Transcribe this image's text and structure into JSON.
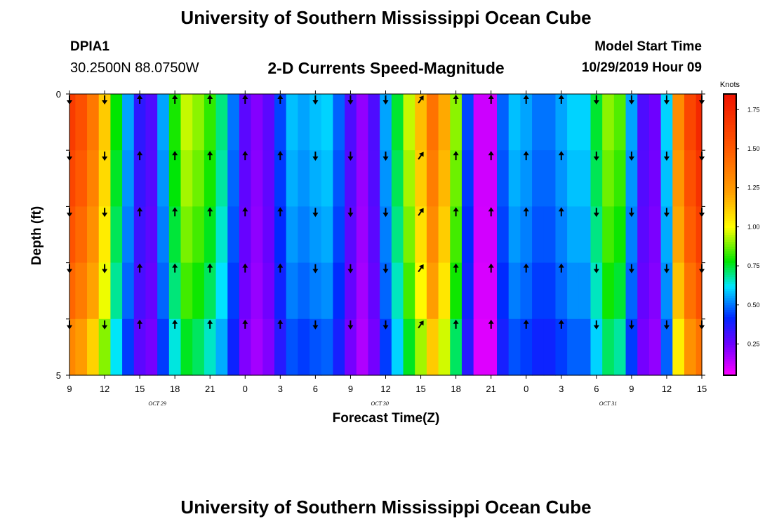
{
  "header": {
    "title": "University of Southern Mississippi Ocean Cube",
    "station_id": "DPIA1",
    "station_coords": "30.2500N 88.0750W",
    "subtitle": "2-D Currents Speed-Magnitude",
    "model_start_label": "Model Start Time",
    "model_start_value": "10/29/2019 Hour 09"
  },
  "footer": {
    "title": "University of Southern Mississippi Ocean Cube"
  },
  "chart_data": {
    "type": "heatmap",
    "title": "2-D Currents Speed-Magnitude",
    "xlabel": "Forecast Time(Z)",
    "ylabel": "Depth (ft)",
    "x_unit": "hours since 10/29 09Z",
    "x": [
      0,
      1,
      2,
      3,
      4,
      5,
      6,
      7,
      8,
      9,
      10,
      11,
      12,
      13,
      14,
      15,
      16,
      17,
      18,
      19,
      20,
      21,
      22,
      23,
      24,
      25,
      26,
      27,
      28,
      29,
      30,
      31,
      32,
      33,
      34,
      35,
      36,
      37,
      38,
      39,
      40,
      41,
      42,
      43,
      44,
      45,
      46,
      47,
      48,
      49,
      50,
      51,
      52,
      53,
      54
    ],
    "xlim": [
      0,
      54
    ],
    "x_tick_labels": [
      "9",
      "12",
      "15",
      "18",
      "21",
      "0",
      "3",
      "6",
      "9",
      "12",
      "15",
      "18",
      "21",
      "0",
      "3",
      "6",
      "9",
      "12",
      "15"
    ],
    "date_labels": [
      {
        "x": 7.5,
        "label": "OCT 29"
      },
      {
        "x": 26.5,
        "label": "OCT 30"
      },
      {
        "x": 46,
        "label": "OCT 31"
      }
    ],
    "y_tick_labels": [
      "0",
      "5"
    ],
    "ylim": [
      0,
      5
    ],
    "depth_rows": 5,
    "surface_speed": [
      1.65,
      1.55,
      1.38,
      1.12,
      0.78,
      0.55,
      0.35,
      0.3,
      0.55,
      0.8,
      0.95,
      0.9,
      0.82,
      0.7,
      0.5,
      0.28,
      0.22,
      0.28,
      0.45,
      0.58,
      0.55,
      0.58,
      0.6,
      0.48,
      0.3,
      0.2,
      0.3,
      0.55,
      0.75,
      0.95,
      1.15,
      1.4,
      1.2,
      0.9,
      0.45,
      0.12,
      0.12,
      0.48,
      0.58,
      0.55,
      0.5,
      0.5,
      0.55,
      0.6,
      0.6,
      0.75,
      0.9,
      0.85,
      0.55,
      0.3,
      0.25,
      0.6,
      1.3,
      1.6,
      1.75
    ],
    "depth_factor": [
      1.0,
      0.97,
      0.93,
      0.88,
      0.8
    ],
    "colorbar": {
      "label": "Knots",
      "ticks": [
        "0.25",
        "0.50",
        "0.75",
        "1.00",
        "1.25",
        "1.50",
        "1.75"
      ],
      "range": [
        0.05,
        1.85
      ]
    },
    "arrow_x": [
      0,
      3,
      6,
      9,
      12,
      15,
      18,
      21,
      24,
      27,
      30,
      33,
      36,
      39,
      42,
      45,
      48,
      51,
      54
    ],
    "arrow_dir": [
      "s",
      "s",
      "n",
      "n",
      "n",
      "n",
      "n",
      "s",
      "s",
      "s",
      "ne",
      "n",
      "n",
      "n",
      "n",
      "s",
      "s",
      "s",
      "s"
    ]
  }
}
